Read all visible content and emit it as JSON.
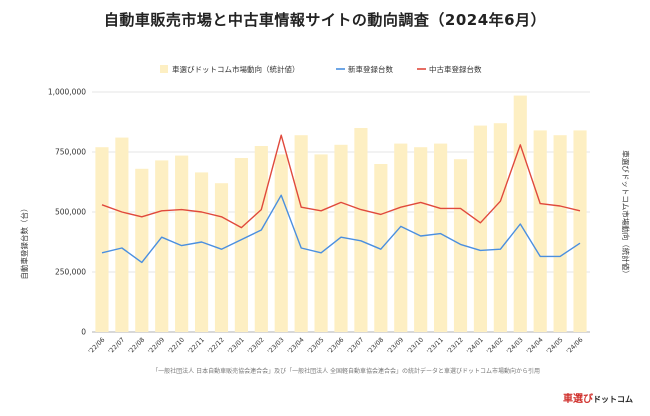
{
  "chart_data": {
    "type": "bar",
    "title": "自動車販売市場と中古車情報サイトの動向調査（2024年6月）",
    "categories": [
      "'22/06",
      "'22/07",
      "'22/08",
      "'22/09",
      "'22/10",
      "'22/11",
      "'22/12",
      "'23/01",
      "'23/02",
      "'23/03",
      "'23/04",
      "'23/05",
      "'23/06",
      "'23/07",
      "'23/08",
      "'23/09",
      "'23/10",
      "'23/11",
      "'23/12",
      "'24/01",
      "'24/02",
      "'24/03",
      "'24/04",
      "'24/05",
      "'24/06"
    ],
    "ylabel": "自動車登録台数（台）",
    "y2label": "車選びドットコム市場動向（統計値）",
    "ylim": [
      0,
      1000000
    ],
    "yticks": [
      "0",
      "250,000",
      "500,000",
      "750,000",
      "1,000,000"
    ],
    "legend_position": "top",
    "grid": true,
    "series": [
      {
        "name": "車選びドットコム市場動向（統計値）",
        "type": "bar",
        "color": "#fdefc3",
        "values": [
          770000,
          810000,
          680000,
          715000,
          735000,
          665000,
          620000,
          725000,
          775000,
          740000,
          820000,
          740000,
          780000,
          850000,
          700000,
          785000,
          770000,
          785000,
          720000,
          860000,
          870000,
          985000,
          840000,
          820000,
          840000
        ]
      },
      {
        "name": "新車登録台数",
        "type": "line",
        "color": "#4a8fe0",
        "values": [
          330000,
          350000,
          290000,
          395000,
          360000,
          375000,
          345000,
          385000,
          425000,
          570000,
          350000,
          330000,
          395000,
          380000,
          345000,
          440000,
          400000,
          410000,
          365000,
          340000,
          345000,
          450000,
          315000,
          315000,
          370000
        ]
      },
      {
        "name": "中古車登録台数",
        "type": "line",
        "color": "#e0493c",
        "values": [
          530000,
          500000,
          480000,
          505000,
          510000,
          500000,
          480000,
          435000,
          510000,
          820000,
          520000,
          505000,
          540000,
          510000,
          490000,
          520000,
          540000,
          515000,
          515000,
          455000,
          545000,
          780000,
          535000,
          525000,
          505000
        ]
      }
    ]
  },
  "source_note": "「一般社団法人 日本自動車販売協会連合会」及び「一般社団法人 全国軽自動車協会連合会」の統計データと車選びドットコム市場動向から引用",
  "logo": {
    "main": "車選び",
    "sub": "ドットコム"
  }
}
